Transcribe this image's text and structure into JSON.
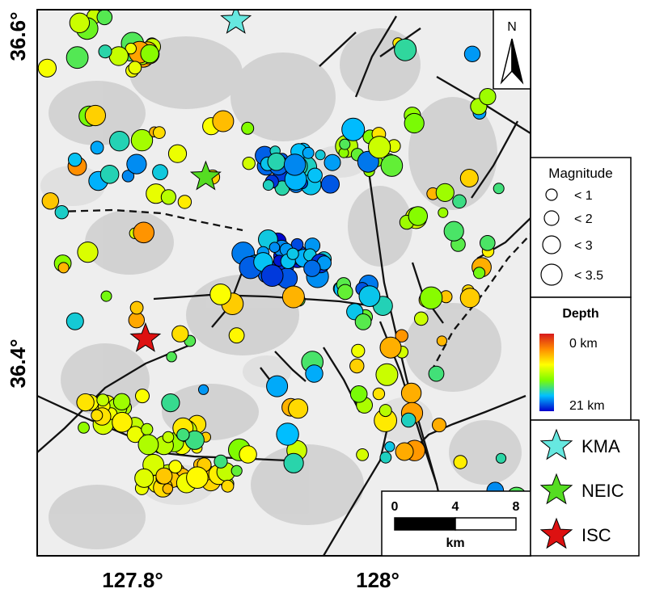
{
  "axes": {
    "x_ticks": [
      "127.8°",
      "128°"
    ],
    "y_ticks": [
      "36.6°",
      "36.4°"
    ]
  },
  "north_arrow": {
    "label": "N"
  },
  "magnitude_legend": {
    "title": "Magnitude",
    "items": [
      "< 1",
      "< 2",
      "< 3",
      "< 3.5"
    ]
  },
  "depth_legend": {
    "title": "Depth",
    "min_label": "0 km",
    "max_label": "21 km",
    "colors": [
      "#d7191c",
      "#ff8c00",
      "#ffff00",
      "#7cfc00",
      "#00c0ff",
      "#0000cd"
    ]
  },
  "agency_legend": [
    {
      "label": "KMA",
      "color": "#66e8e0"
    },
    {
      "label": "NEIC",
      "color": "#55dd22"
    },
    {
      "label": "ISC",
      "color": "#dd1111"
    }
  ],
  "scale_bar": {
    "ticks": [
      "0",
      "4",
      "8"
    ],
    "unit": "km"
  },
  "map": {
    "lon_range": [
      127.755,
      128.115
    ],
    "lat_range": [
      36.203,
      36.608
    ],
    "epicenters": [
      {
        "agency": "KMA",
        "lon": 127.9,
        "lat": 36.6,
        "color": "#66e8e0"
      },
      {
        "agency": "NEIC",
        "lon": 127.878,
        "lat": 36.484,
        "color": "#55dd22"
      },
      {
        "agency": "ISC",
        "lon": 127.834,
        "lat": 36.364,
        "color": "#dd1111"
      }
    ]
  }
}
